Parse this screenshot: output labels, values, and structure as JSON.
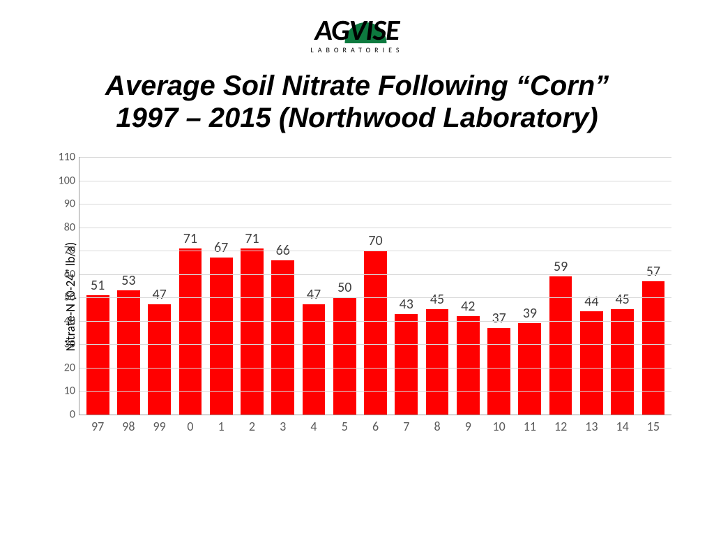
{
  "logo": {
    "part1": "AG",
    "part2": "VISE",
    "sub": "LABORATORIES",
    "swoosh_color": "#0d7a3f"
  },
  "title_line1": "Average Soil Nitrate Following “Corn”",
  "title_line2": "1997 – 2015 (Northwood Laboratory)",
  "chart": {
    "type": "bar",
    "ylabel": "Nitrate-N (0-24” lb/a)",
    "ylim": [
      0,
      110
    ],
    "ytick_step": 10,
    "categories": [
      "97",
      "98",
      "99",
      "0",
      "1",
      "2",
      "3",
      "4",
      "5",
      "6",
      "7",
      "8",
      "9",
      "10",
      "11",
      "12",
      "13",
      "14",
      "15"
    ],
    "values": [
      51,
      53,
      47,
      71,
      67,
      71,
      66,
      47,
      50,
      70,
      43,
      45,
      42,
      37,
      39,
      59,
      44,
      45,
      57
    ],
    "bar_color": "#ff0000",
    "grid_color": "#d9d9d9",
    "axis_color": "#999999",
    "label_color": "#404040",
    "tick_color": "#595959",
    "background_color": "#ffffff",
    "label_fontsize": 20,
    "tick_fontsize": 17,
    "ylabel_fontsize": 18,
    "bar_width": 0.74
  }
}
